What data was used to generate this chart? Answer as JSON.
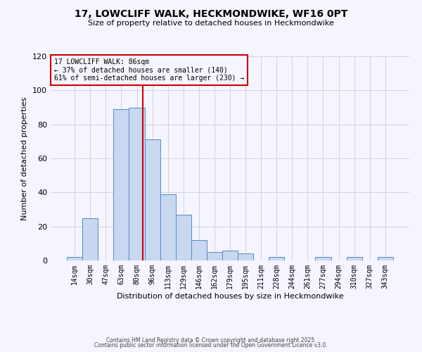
{
  "title": "17, LOWCLIFF WALK, HECKMONDWIKE, WF16 0PT",
  "subtitle": "Size of property relative to detached houses in Heckmondwike",
  "xlabel": "Distribution of detached houses by size in Heckmondwike",
  "ylabel": "Number of detached properties",
  "footer1": "Contains HM Land Registry data © Crown copyright and database right 2025.",
  "footer2": "Contains public sector information licensed under the Open Government Licence v3.0.",
  "bin_labels": [
    "14sqm",
    "30sqm",
    "47sqm",
    "63sqm",
    "80sqm",
    "96sqm",
    "113sqm",
    "129sqm",
    "146sqm",
    "162sqm",
    "179sqm",
    "195sqm",
    "211sqm",
    "228sqm",
    "244sqm",
    "261sqm",
    "277sqm",
    "294sqm",
    "310sqm",
    "327sqm",
    "343sqm"
  ],
  "bar_values": [
    2,
    25,
    0,
    89,
    90,
    71,
    39,
    27,
    12,
    5,
    6,
    4,
    0,
    2,
    0,
    0,
    2,
    0,
    2,
    0,
    2
  ],
  "bar_color": "#c8d8f0",
  "bar_edge_color": "#5588cc",
  "vline_label": "17 LOWCLIFF WALK: 86sqm",
  "annotation_line2": "← 37% of detached houses are smaller (140)",
  "annotation_line3": "61% of semi-detached houses are larger (230) →",
  "annotation_box_color": "#cc0000",
  "vline_pos": 4.375,
  "ylim": [
    0,
    120
  ],
  "yticks": [
    0,
    20,
    40,
    60,
    80,
    100,
    120
  ],
  "background_color": "#f5f5ff",
  "grid_color": "#ccccdd"
}
